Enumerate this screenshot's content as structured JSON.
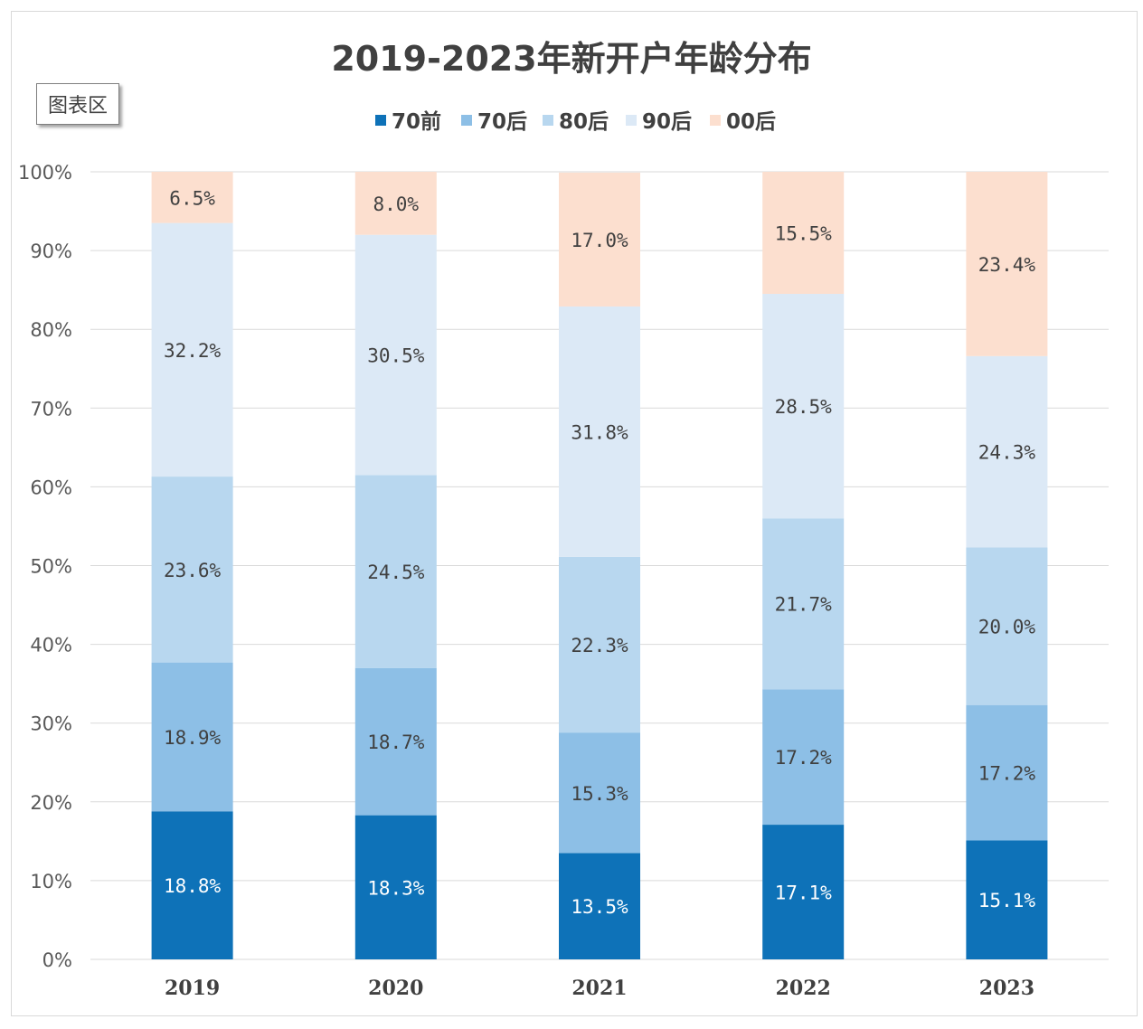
{
  "chart_data": {
    "type": "bar",
    "stacked": true,
    "percent_stacked": true,
    "title": "2019-2023年新开户年龄分布",
    "badge": "图表区",
    "categories": [
      "2019",
      "2020",
      "2021",
      "2022",
      "2023"
    ],
    "series": [
      {
        "name": "70前",
        "color": "#0e72b8",
        "label_color": "#ffffff",
        "values": [
          18.8,
          18.3,
          13.5,
          17.1,
          15.1
        ],
        "labels": [
          "18.8%",
          "18.3%",
          "13.5%",
          "17.1%",
          "15.1%"
        ]
      },
      {
        "name": "70后",
        "color": "#8dbfe6",
        "label_color": "#404040",
        "values": [
          18.9,
          18.7,
          15.3,
          17.2,
          17.2
        ],
        "labels": [
          "18.9%",
          "18.7%",
          "15.3%",
          "17.2%",
          "17.2%"
        ]
      },
      {
        "name": "80后",
        "color": "#b8d7ef",
        "label_color": "#404040",
        "values": [
          23.6,
          24.5,
          22.3,
          21.7,
          20.0
        ],
        "labels": [
          "23.6%",
          "24.5%",
          "22.3%",
          "21.7%",
          "20.0%"
        ]
      },
      {
        "name": "90后",
        "color": "#dce9f6",
        "label_color": "#404040",
        "values": [
          32.2,
          30.5,
          31.8,
          28.5,
          24.3
        ],
        "labels": [
          "32.2%",
          "30.5%",
          "31.8%",
          "28.5%",
          "24.3%"
        ]
      },
      {
        "name": "00后",
        "color": "#fcdfcf",
        "label_color": "#404040",
        "values": [
          6.5,
          8.0,
          17.0,
          15.5,
          23.4
        ],
        "labels": [
          "6.5%",
          "8.0%",
          "17.0%",
          "15.5%",
          "23.4%"
        ]
      }
    ],
    "y_ticks": [
      "0%",
      "10%",
      "20%",
      "30%",
      "40%",
      "50%",
      "60%",
      "70%",
      "80%",
      "90%",
      "100%"
    ],
    "ylim": [
      0,
      100
    ],
    "xlabel": "",
    "ylabel": "",
    "grid": true,
    "legend_position": "top-center",
    "gridline_color": "#d9d9d9",
    "axis_text_color": "#595959"
  }
}
